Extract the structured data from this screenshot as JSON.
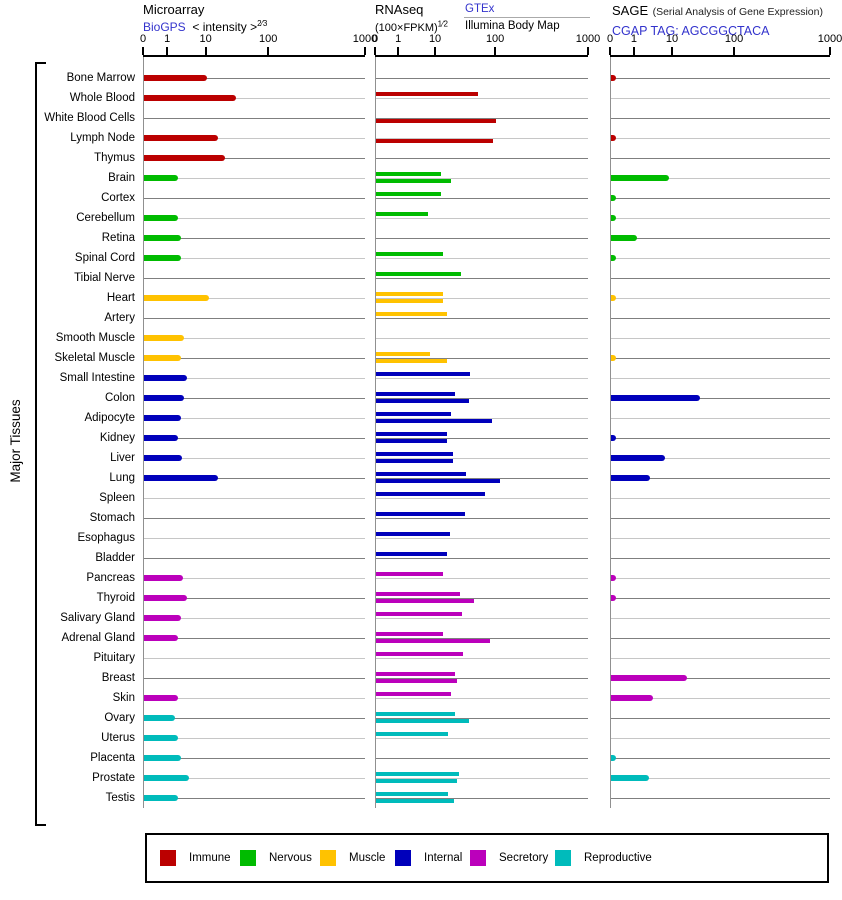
{
  "panels": {
    "microarray": {
      "title": "Microarray",
      "link": "BioGPS",
      "subtitle": "< intensity >",
      "exponent": "2⁄3",
      "ticks": [
        "0",
        "1",
        "10",
        "100",
        "1000"
      ]
    },
    "rnaseq": {
      "title": "RNAseq",
      "subtitle": "(100×FPKM)",
      "exponent": "1⁄2",
      "link": "GTEx",
      "sublabel": "Illumina Body Map",
      "ticks": [
        "0",
        "1",
        "10",
        "100",
        "1000"
      ]
    },
    "sage": {
      "title": "SAGE",
      "note": "(Serial Analysis of Gene Expression)",
      "link": "CGAP TAG: AGCGGCTACA",
      "ticks": [
        "0",
        "1",
        "10",
        "100",
        "1000"
      ]
    }
  },
  "left_axis": {
    "label": "Major Tissues"
  },
  "legend": [
    {
      "id": "immune",
      "label": "Immune",
      "color": "#bb0000"
    },
    {
      "id": "nervous",
      "label": "Nervous",
      "color": "#00bb00"
    },
    {
      "id": "muscle",
      "label": "Muscle",
      "color": "#ffc200"
    },
    {
      "id": "internal",
      "label": "Internal",
      "color": "#0000bb"
    },
    {
      "id": "secretory",
      "label": "Secretory",
      "color": "#bb00bb"
    },
    {
      "id": "reproductive",
      "label": "Reproductive",
      "color": "#00bbbb"
    }
  ],
  "chart_data": {
    "type": "bar",
    "orientation": "horizontal",
    "value_scale": "pseudo-log, ticks 0/1/10/100/1000 at width fractions 0/0.109/0.282/0.564/1",
    "axis_ticks": [
      0,
      1,
      10,
      100,
      1000
    ],
    "panels": [
      "Microarray (BioGPS, intensity^2/3)",
      "RNAseq (GTEx and Illumina Body Map, (100×FPKM)^1/2)",
      "SAGE (CGAP TAG: AGCGGCTACA)"
    ],
    "series_note": "rnaseq_gtex renders above the row line, rnaseq_illumina below it; null = no bar",
    "rows": [
      {
        "tissue": "Bone Marrow",
        "group": "immune",
        "microarray": 10,
        "rnaseq_gtex": null,
        "rnaseq_illumina": null,
        "sage": 0.2
      },
      {
        "tissue": "Whole Blood",
        "group": "immune",
        "microarray": 30,
        "rnaseq_gtex": 50,
        "rnaseq_illumina": null,
        "sage": null
      },
      {
        "tissue": "White Blood Cells",
        "group": "immune",
        "microarray": null,
        "rnaseq_gtex": null,
        "rnaseq_illumina": 100,
        "sage": null
      },
      {
        "tissue": "Lymph Node",
        "group": "immune",
        "microarray": 15,
        "rnaseq_gtex": null,
        "rnaseq_illumina": 90,
        "sage": 0.2
      },
      {
        "tissue": "Thymus",
        "group": "immune",
        "microarray": 20,
        "rnaseq_gtex": null,
        "rnaseq_illumina": null,
        "sage": null
      },
      {
        "tissue": "Brain",
        "group": "nervous",
        "microarray": 1.8,
        "rnaseq_gtex": 12,
        "rnaseq_illumina": 18,
        "sage": 8
      },
      {
        "tissue": "Cortex",
        "group": "nervous",
        "microarray": null,
        "rnaseq_gtex": 12,
        "rnaseq_illumina": null,
        "sage": 0.2
      },
      {
        "tissue": "Cerebellum",
        "group": "nervous",
        "microarray": 1.8,
        "rnaseq_gtex": 6,
        "rnaseq_illumina": null,
        "sage": 0.2
      },
      {
        "tissue": "Retina",
        "group": "nervous",
        "microarray": 2.2,
        "rnaseq_gtex": null,
        "rnaseq_illumina": null,
        "sage": 1.1
      },
      {
        "tissue": "Spinal Cord",
        "group": "nervous",
        "microarray": 2.1,
        "rnaseq_gtex": 13,
        "rnaseq_illumina": null,
        "sage": 0.2
      },
      {
        "tissue": "Tibial Nerve",
        "group": "nervous",
        "microarray": null,
        "rnaseq_gtex": 26,
        "rnaseq_illumina": null,
        "sage": null
      },
      {
        "tissue": "Heart",
        "group": "muscle",
        "microarray": 11,
        "rnaseq_gtex": 13,
        "rnaseq_illumina": 13,
        "sage": 0.2
      },
      {
        "tissue": "Artery",
        "group": "muscle",
        "microarray": null,
        "rnaseq_gtex": 15,
        "rnaseq_illumina": null,
        "sage": null
      },
      {
        "tissue": "Smooth Muscle",
        "group": "muscle",
        "microarray": 2.6,
        "rnaseq_gtex": null,
        "rnaseq_illumina": null,
        "sage": null
      },
      {
        "tissue": "Skeletal Muscle",
        "group": "muscle",
        "microarray": 2.1,
        "rnaseq_gtex": 7,
        "rnaseq_illumina": 15,
        "sage": 0.2
      },
      {
        "tissue": "Small Intestine",
        "group": "internal",
        "microarray": 3,
        "rnaseq_gtex": 37,
        "rnaseq_illumina": null,
        "sage": null
      },
      {
        "tissue": "Colon",
        "group": "internal",
        "microarray": 2.6,
        "rnaseq_gtex": 21,
        "rnaseq_illumina": 36,
        "sage": 27
      },
      {
        "tissue": "Adipocyte",
        "group": "internal",
        "microarray": 2.1,
        "rnaseq_gtex": 18,
        "rnaseq_illumina": 85,
        "sage": null
      },
      {
        "tissue": "Kidney",
        "group": "internal",
        "microarray": 1.8,
        "rnaseq_gtex": 15,
        "rnaseq_illumina": 15,
        "sage": 0.2
      },
      {
        "tissue": "Liver",
        "group": "internal",
        "microarray": 2.3,
        "rnaseq_gtex": 19,
        "rnaseq_illumina": 19,
        "sage": 6
      },
      {
        "tissue": "Lung",
        "group": "internal",
        "microarray": 15,
        "rnaseq_gtex": 31,
        "rnaseq_illumina": 110,
        "sage": 2.5
      },
      {
        "tissue": "Spleen",
        "group": "internal",
        "microarray": null,
        "rnaseq_gtex": 65,
        "rnaseq_illumina": null,
        "sage": null
      },
      {
        "tissue": "Stomach",
        "group": "internal",
        "microarray": null,
        "rnaseq_gtex": 30,
        "rnaseq_illumina": null,
        "sage": null
      },
      {
        "tissue": "Esophagus",
        "group": "internal",
        "microarray": null,
        "rnaseq_gtex": 17,
        "rnaseq_illumina": null,
        "sage": null
      },
      {
        "tissue": "Bladder",
        "group": "internal",
        "microarray": null,
        "rnaseq_gtex": 15,
        "rnaseq_illumina": null,
        "sage": null
      },
      {
        "tissue": "Pancreas",
        "group": "secretory",
        "microarray": 2.5,
        "rnaseq_gtex": 13,
        "rnaseq_illumina": null,
        "sage": 0.2
      },
      {
        "tissue": "Thyroid",
        "group": "secretory",
        "microarray": 3,
        "rnaseq_gtex": 25,
        "rnaseq_illumina": 43,
        "sage": 0.2
      },
      {
        "tissue": "Salivary Gland",
        "group": "secretory",
        "microarray": 2.2,
        "rnaseq_gtex": 27,
        "rnaseq_illumina": null,
        "sage": null
      },
      {
        "tissue": "Adrenal Gland",
        "group": "secretory",
        "microarray": 1.8,
        "rnaseq_gtex": 13,
        "rnaseq_illumina": 80,
        "sage": null
      },
      {
        "tissue": "Pituitary",
        "group": "secretory",
        "microarray": null,
        "rnaseq_gtex": 28,
        "rnaseq_illumina": null,
        "sage": null
      },
      {
        "tissue": "Breast",
        "group": "secretory",
        "microarray": null,
        "rnaseq_gtex": 21,
        "rnaseq_illumina": 22,
        "sage": 17
      },
      {
        "tissue": "Skin",
        "group": "secretory",
        "microarray": 1.8,
        "rnaseq_gtex": 18,
        "rnaseq_illumina": null,
        "sage": 3
      },
      {
        "tissue": "Ovary",
        "group": "reproductive",
        "microarray": 1.5,
        "rnaseq_gtex": 21,
        "rnaseq_illumina": 35,
        "sage": null
      },
      {
        "tissue": "Uterus",
        "group": "reproductive",
        "microarray": 1.8,
        "rnaseq_gtex": 16,
        "rnaseq_illumina": null,
        "sage": null
      },
      {
        "tissue": "Placenta",
        "group": "reproductive",
        "microarray": 2.1,
        "rnaseq_gtex": null,
        "rnaseq_illumina": null,
        "sage": 0.2
      },
      {
        "tissue": "Prostate",
        "group": "reproductive",
        "microarray": 3.4,
        "rnaseq_gtex": 24,
        "rnaseq_illumina": 22,
        "sage": 2.4
      },
      {
        "tissue": "Testis",
        "group": "reproductive",
        "microarray": 1.8,
        "rnaseq_gtex": 16,
        "rnaseq_illumina": 20,
        "sage": null
      }
    ]
  }
}
